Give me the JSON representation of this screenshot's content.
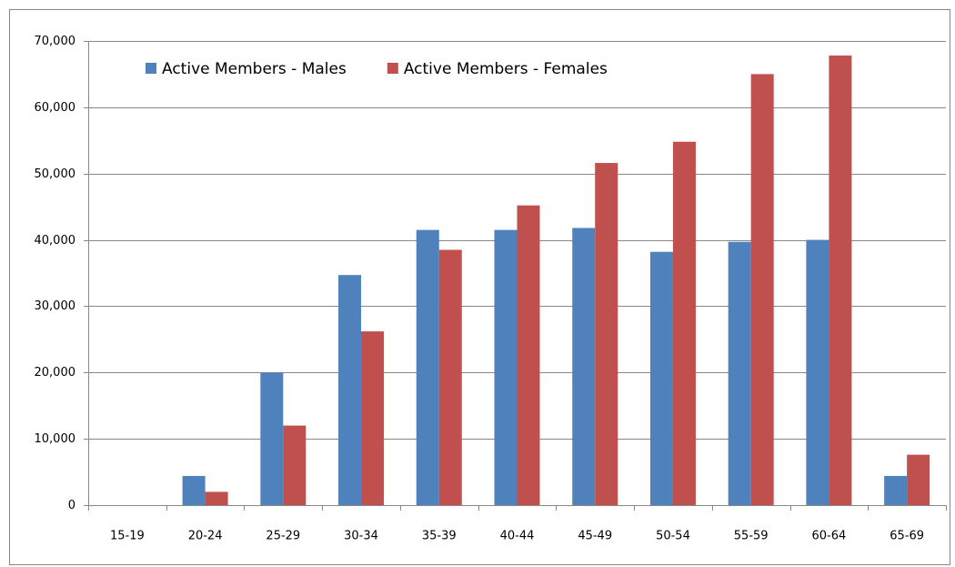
{
  "chart_data": {
    "type": "bar",
    "categories": [
      "15-19",
      "20-24",
      "25-29",
      "30-34",
      "35-39",
      "40-44",
      "45-49",
      "50-54",
      "55-59",
      "60-64",
      "65-69"
    ],
    "series": [
      {
        "name": "Active Members - Males",
        "color": "#4f81bd",
        "values": [
          0,
          4400,
          20000,
          34700,
          41500,
          41500,
          41800,
          38200,
          39700,
          40000,
          4400
        ]
      },
      {
        "name": "Active Members - Females",
        "color": "#c0504d",
        "values": [
          0,
          2000,
          12000,
          26200,
          38500,
          45200,
          51600,
          54800,
          65000,
          67800,
          7600
        ]
      }
    ],
    "ylim": [
      0,
      70000
    ],
    "yticks": [
      0,
      {
        "value": 10000,
        "label": "10,000"
      },
      {
        "value": 20000,
        "label": "20,000"
      },
      {
        "value": 30000,
        "label": "30,000"
      },
      {
        "value": 40000,
        "label": "40,000"
      },
      {
        "value": 50000,
        "label": "50,000"
      },
      {
        "value": 60000,
        "label": "60,000"
      },
      {
        "value": 70000,
        "label": "70,000"
      }
    ],
    "grid": true,
    "legend": "top-left"
  }
}
